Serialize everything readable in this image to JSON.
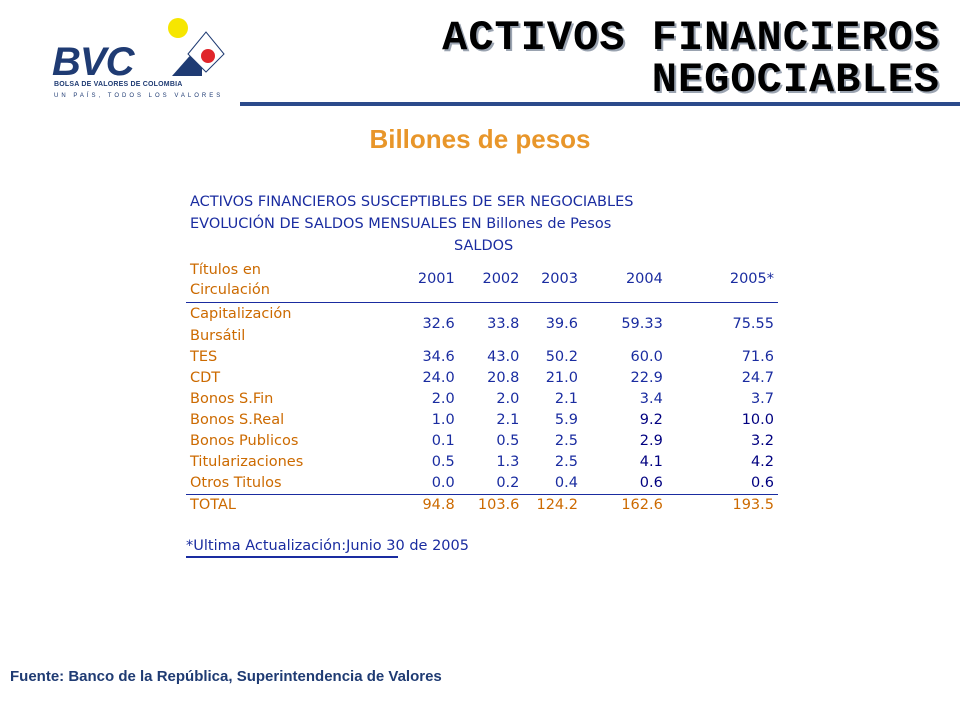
{
  "logo": {
    "name": "BVC",
    "line1": "BOLSA DE VALORES DE COLOMBIA",
    "line2": "UN PAÍS, TODOS LOS VALORES"
  },
  "title": {
    "line1": "ACTIVOS FINANCIEROS",
    "line2": "NEGOCIABLES"
  },
  "subtitle": "Billones de pesos",
  "table": {
    "heading1": "ACTIVOS FINANCIEROS SUSCEPTIBLES DE SER NEGOCIABLES",
    "heading2": "EVOLUCIÓN DE SALDOS MENSUALES EN Billones de Pesos",
    "group_header": "SALDOS",
    "label_header_line1": "Títulos en",
    "label_header_line2": "Circulación",
    "years": [
      "2001",
      "2002",
      "2003",
      "2004",
      "2005*"
    ],
    "rows": [
      {
        "label": "Capitalización",
        "label2": "Bursátil",
        "values": [
          "32.6",
          "33.8",
          "39.6",
          "59.33",
          "75.55"
        ]
      },
      {
        "label": "TES",
        "values": [
          "34.6",
          "43.0",
          "50.2",
          "60.0",
          "71.6"
        ]
      },
      {
        "label": "CDT",
        "values": [
          "24.0",
          "20.8",
          "21.0",
          "22.9",
          "24.7"
        ]
      },
      {
        "label": "Bonos S.Fin",
        "values": [
          "2.0",
          "2.0",
          "2.1",
          "3.4",
          "3.7"
        ]
      },
      {
        "label": "Bonos S.Real",
        "values": [
          "1.0",
          "2.1",
          "5.9",
          "9.2",
          "10.0"
        ]
      },
      {
        "label": "Bonos Publicos",
        "values": [
          "0.1",
          "0.5",
          "2.5",
          "2.9",
          "3.2"
        ]
      },
      {
        "label": "Titularizaciones",
        "values": [
          "0.5",
          "1.3",
          "2.5",
          "4.1",
          "4.2"
        ]
      },
      {
        "label": "Otros Titulos",
        "values": [
          "0.0",
          "0.2",
          "0.4",
          "0.6",
          "0.6"
        ]
      }
    ],
    "total": {
      "label": "TOTAL",
      "values": [
        "94.8",
        "103.6",
        "124.2",
        "162.6",
        "193.5"
      ]
    },
    "note": "*Ultima Actualización:Junio 30 de 2005"
  },
  "source": "Fuente: Banco de la República, Superintendencia de Valores",
  "colors": {
    "title_shadow": "#9aa3b0",
    "rule": "#2b4a8b",
    "subtitle": "#e8962a",
    "table_blue": "#1a2ca0",
    "table_orange": "#cc6a00",
    "logo_blue": "#1f3b73",
    "logo_yellow": "#f6e600",
    "logo_red": "#e0262b"
  }
}
